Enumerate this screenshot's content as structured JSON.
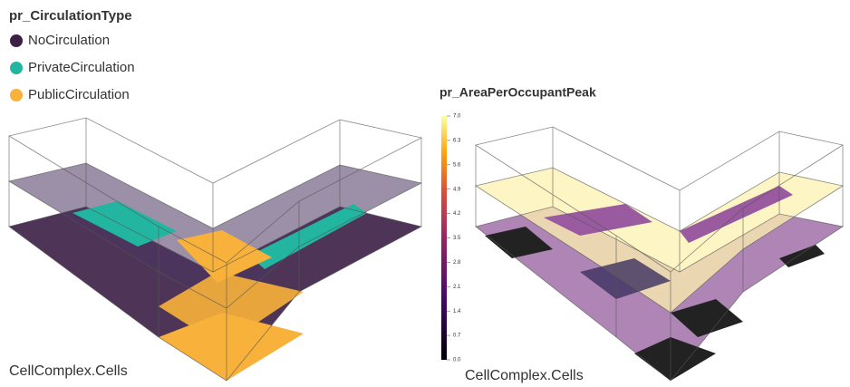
{
  "legend": {
    "title": "pr_CirculationType",
    "items": [
      {
        "label": "NoCirculation",
        "color": "#3b1f45"
      },
      {
        "label": "PrivateCirculation",
        "color": "#22b5a0"
      },
      {
        "label": "PublicCirculation",
        "color": "#f8b13a"
      }
    ]
  },
  "left_view": {
    "caption": "CellComplex.Cells"
  },
  "colorbar": {
    "title": "pr_AreaPerOccupantPeak",
    "lim": [
      0,
      7
    ],
    "ticks": [
      {
        "value": 7,
        "label": "7.0"
      },
      {
        "value": 6.3,
        "label": "6.3"
      },
      {
        "value": 5.6,
        "label": "5.6"
      },
      {
        "value": 4.9,
        "label": "4.9"
      },
      {
        "value": 4.2,
        "label": "4.2"
      },
      {
        "value": 3.5,
        "label": "3.5"
      },
      {
        "value": 2.8,
        "label": "2.8"
      },
      {
        "value": 2.1,
        "label": "2.1"
      },
      {
        "value": 1.4,
        "label": "1.4"
      },
      {
        "value": 0.7,
        "label": "0.7"
      },
      {
        "value": 0,
        "label": "0.0"
      }
    ]
  },
  "right_view": {
    "caption": "CellComplex.Cells"
  }
}
